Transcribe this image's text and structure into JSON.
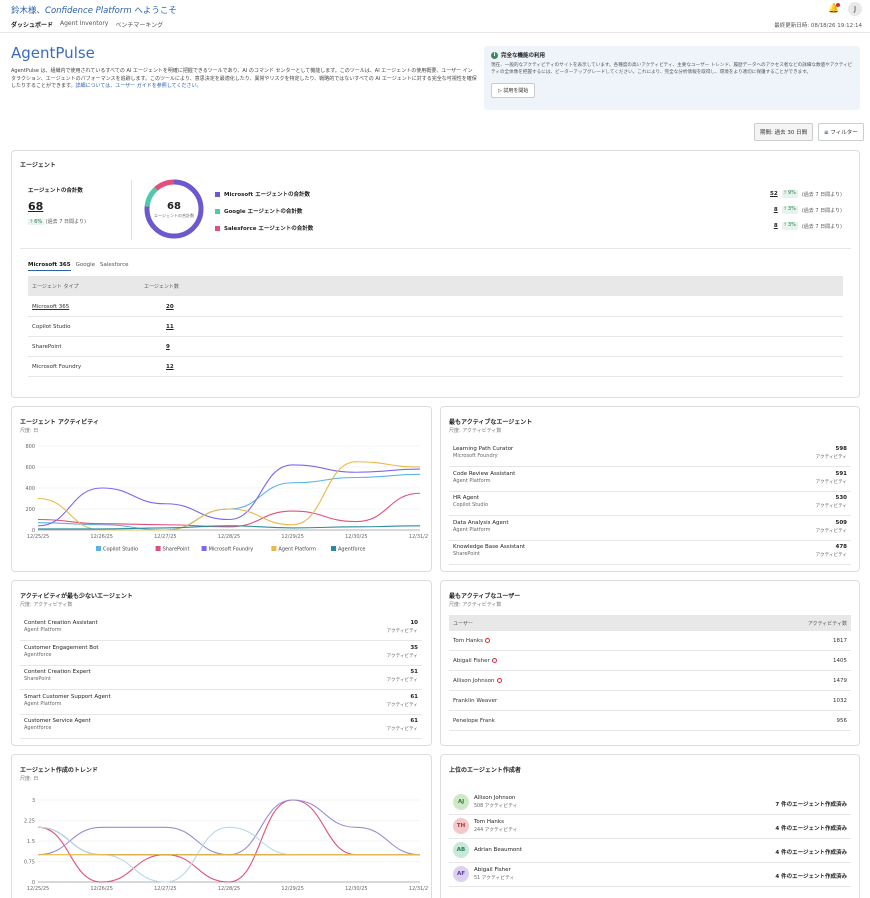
{
  "header": {
    "welcome_prefix": "鈴木様、",
    "platform": "Confidence Platform",
    "welcome_suffix": " へようこそ",
    "avatar": "J",
    "updated": "最終更新日時: 08/18/26 19:12:14"
  },
  "tabs": [
    "ダッシュボード",
    "Agent Inventory",
    "ベンチマーキング"
  ],
  "page": {
    "title": "AgentPulse",
    "intro": "AgentPulse は、組織内で使用されているすべての AI エージェントを明確に把握できるツールであり、AI のコマンド センターとして機能します。このツールは、AI エージェントの使用概要、ユーザー インタラクション、エージェントのパフォーマンスを追跡します。このツールにより、意思決定を最適化したり、異常やリスクを特定したり、戦略的ではないすべての AI エージェントに対する完全な可視性を確保したりすることができます。",
    "intro_link": "詳細については、ユーザー ガイドを参照してください。"
  },
  "notice": {
    "title": "完全な機能の利用",
    "desc": "現在、一般的なアクティビティのサイトを表示しています。各種度の高いアクティビティ、主要なユーザー トレンド、履歴データへのアクセス者などの詳細な数値やアクティビティの全体像を把握するには、ビーターアップグレードしてください。これにより、完全な分析情報を取得し、環境をより適切に保護することができます。",
    "button": "▷ 試用を開始"
  },
  "period_label": "期間: 過去 30 日間",
  "filter_label": "フィルター",
  "agents": {
    "title": "エージェント",
    "total_label": "エージェントの合計数",
    "total": "68",
    "total_change": "6%",
    "total_change_note": "(過去 7 日間より)",
    "donut_value": "68",
    "donut_label": "エージェントの合計数",
    "breakdown": [
      {
        "label": "Microsoft エージェントの合計数",
        "color": "#6a5acd",
        "value": "52",
        "change": "9%",
        "note": "(過去 7 日間より)"
      },
      {
        "label": "Google エージェントの合計数",
        "color": "#4ec9b0",
        "value": "8",
        "change": "3%",
        "note": "(過去 7 日間より)"
      },
      {
        "label": "Salesforce エージェントの合計数",
        "color": "#e0507a",
        "value": "8",
        "change": "3%",
        "note": "(過去 7 日間より)"
      }
    ],
    "subtabs": [
      "Microsoft 365",
      "Google",
      "Salesforce"
    ],
    "table_headers": [
      "エージェント タイプ",
      "エージェント数"
    ],
    "table_rows": [
      {
        "type": "Microsoft 365",
        "count": "20"
      },
      {
        "type": "Copilot Studio",
        "count": "11"
      },
      {
        "type": "SharePoint",
        "count": "9"
      },
      {
        "type": "Microsoft Foundry",
        "count": "12"
      }
    ]
  },
  "activity": {
    "title": "エージェント アクティビティ",
    "sub": "尺度: 日",
    "chart_data": {
      "type": "line",
      "x": [
        "12/25/25",
        "12/26/25",
        "12/27/25",
        "12/28/25",
        "12/29/25",
        "12/30/25",
        "12/31/25"
      ],
      "ylim": [
        0,
        800
      ],
      "yticks": [
        "0",
        "200",
        "400",
        "600",
        "800"
      ],
      "series": [
        {
          "name": "Copilot Studio",
          "color": "#5ab4e8",
          "values": [
            70,
            50,
            0,
            200,
            450,
            500,
            530
          ]
        },
        {
          "name": "SharePoint",
          "color": "#e0507a",
          "values": [
            100,
            60,
            50,
            30,
            180,
            80,
            350
          ]
        },
        {
          "name": "Microsoft Foundry",
          "color": "#7b68ee",
          "values": [
            40,
            400,
            250,
            100,
            620,
            550,
            580
          ]
        },
        {
          "name": "Agent Platform",
          "color": "#e8b84a",
          "values": [
            300,
            0,
            0,
            200,
            50,
            650,
            600
          ]
        },
        {
          "name": "Agentforce",
          "color": "#2a8aa0",
          "values": [
            10,
            10,
            20,
            40,
            20,
            30,
            40
          ]
        }
      ]
    }
  },
  "most_active": {
    "title": "最もアクティブなエージェント",
    "sub": "尺度: アクティビティ数",
    "unit": "アクティビティ",
    "items": [
      {
        "name": "Learning Path Curator",
        "sub": "Microsoft Foundry",
        "value": "598"
      },
      {
        "name": "Code Review Assistant",
        "sub": "Agent Platform",
        "value": "591"
      },
      {
        "name": "HR Agent",
        "sub": "Copilot Studio",
        "value": "530"
      },
      {
        "name": "Data Analysis Agent",
        "sub": "Agent Platform",
        "value": "509"
      },
      {
        "name": "Knowledge Base Assistant",
        "sub": "SharePoint",
        "value": "478"
      }
    ]
  },
  "least_active": {
    "title": "アクティビティが最も少ないエージェント",
    "sub": "尺度: アクティビティ数",
    "unit": "アクティビティ",
    "items": [
      {
        "name": "Content Creation Assistant",
        "sub": "Agent Platform",
        "value": "10"
      },
      {
        "name": "Customer Engagement Bot",
        "sub": "Agentforce",
        "value": "35"
      },
      {
        "name": "Content Creation Expert",
        "sub": "SharePoint",
        "value": "51"
      },
      {
        "name": "Smart Customer Support Agent",
        "sub": "Agent Platform",
        "value": "61"
      },
      {
        "name": "Customer Service Agent",
        "sub": "Agentforce",
        "value": "61"
      }
    ]
  },
  "active_users": {
    "title": "最もアクティブなユーザー",
    "sub": "尺度: アクティビティ数",
    "headers": [
      "ユーザー",
      "アクティビティ数"
    ],
    "rows": [
      {
        "name": "Tom Hanks",
        "value": "1817",
        "flag": true
      },
      {
        "name": "Abigail Fisher",
        "value": "1405",
        "flag": true
      },
      {
        "name": "Allison Johnson",
        "value": "1479",
        "flag": true
      },
      {
        "name": "Franklin Weaver",
        "value": "1032",
        "flag": false
      },
      {
        "name": "Penelope Frank",
        "value": "956",
        "flag": false
      }
    ]
  },
  "creation_trend": {
    "title": "エージェント作成のトレンド",
    "sub": "尺度: 日",
    "chart_data": {
      "type": "line",
      "x": [
        "12/25/25",
        "12/26/25",
        "12/27/25",
        "12/28/25",
        "12/29/25",
        "12/30/25",
        "12/31/25"
      ],
      "ylim": [
        0,
        3
      ],
      "yticks": [
        "0",
        "0.75",
        "1.5",
        "2.25",
        "3"
      ],
      "series": [
        {
          "color": "#e0507a",
          "values": [
            2,
            0,
            1,
            0,
            3,
            1,
            1
          ]
        },
        {
          "color": "#9a8ad8",
          "values": [
            1,
            2,
            2,
            1,
            3,
            2,
            1
          ]
        },
        {
          "color": "#6a6a6a",
          "values": [
            2,
            1,
            1,
            1,
            1,
            1,
            1
          ]
        },
        {
          "color": "#b8d8e8",
          "values": [
            2,
            1,
            0,
            2,
            1,
            1,
            1
          ]
        },
        {
          "color": "#e8b84a",
          "values": [
            1,
            1,
            1,
            1,
            1,
            1,
            1
          ]
        }
      ]
    }
  },
  "top_creators": {
    "title": "上位のエージェント作成者",
    "items": [
      {
        "initials": "AJ",
        "name": "Allison Johnson",
        "sub": "508 アクティビティ",
        "value": "7 件のエージェント作成済み",
        "bg": "#cfe8c8",
        "fg": "#3a7a3a"
      },
      {
        "initials": "TH",
        "name": "Tom Hanks",
        "sub": "244 アクティビティ",
        "value": "4 件のエージェント作成済み",
        "bg": "#f3c8c8",
        "fg": "#a03a3a"
      },
      {
        "initials": "AB",
        "name": "Adrian Beaumont",
        "sub": "",
        "value": "4 件のエージェント作成済み",
        "bg": "#c8e8d8",
        "fg": "#2a7a5a"
      },
      {
        "initials": "AF",
        "name": "Abigail Fisher",
        "sub": "51 アクティビティ",
        "value": "4 件のエージェント作成済み",
        "bg": "#dcd0f0",
        "fg": "#5a3a9a"
      }
    ]
  }
}
